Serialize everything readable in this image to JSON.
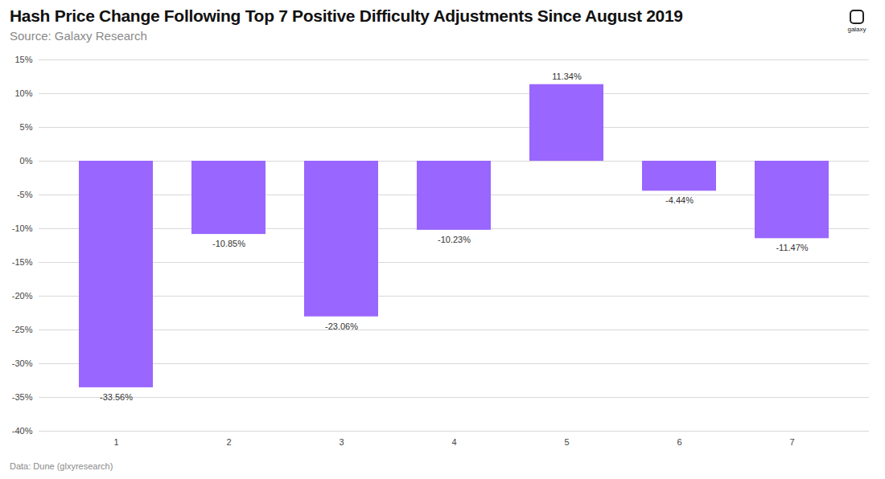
{
  "chart_data": {
    "type": "bar",
    "title": "Hash Price Change Following Top 7 Positive Difficulty Adjustments Since August 2019",
    "subtitle": "Source: Galaxy Research",
    "caption": "Data: Dune (glxyresearch)",
    "brand": "galaxy",
    "categories": [
      "1",
      "2",
      "3",
      "4",
      "5",
      "6",
      "7"
    ],
    "values": [
      -33.56,
      -10.85,
      -23.06,
      -10.23,
      11.34,
      -4.44,
      -11.47
    ],
    "value_labels": [
      "-33.56%",
      "-10.85%",
      "-23.06%",
      "-10.23%",
      "11.34%",
      "-4.44%",
      "-11.47%"
    ],
    "color": "#9966ff",
    "ylim": [
      -40,
      15
    ],
    "yticks": [
      {
        "value": -40,
        "label": "-40%"
      },
      {
        "value": -35,
        "label": "-35%"
      },
      {
        "value": -30,
        "label": "-30%"
      },
      {
        "value": -25,
        "label": "-25%"
      },
      {
        "value": -20,
        "label": "-20%"
      },
      {
        "value": -15,
        "label": "-15%"
      },
      {
        "value": -10,
        "label": "-10%"
      },
      {
        "value": -5,
        "label": "-5%"
      },
      {
        "value": 0,
        "label": "0%"
      },
      {
        "value": 5,
        "label": "5%"
      },
      {
        "value": 10,
        "label": "10%"
      },
      {
        "value": 15,
        "label": "15%"
      }
    ],
    "grid": true,
    "data_labels": true
  }
}
